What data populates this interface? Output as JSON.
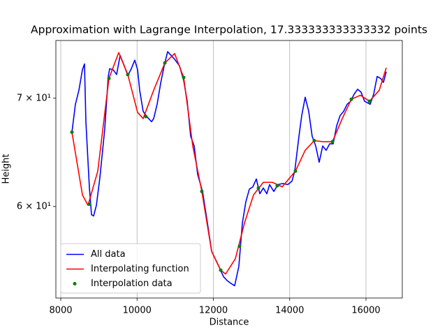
{
  "chart_data": {
    "type": "line",
    "title": "Approximation with Lagrange Interpolation, 17.333333333333332 points",
    "x_label": "Distance",
    "y_label": "Height",
    "xlim": [
      7872,
      16952
    ],
    "ylim": [
      52.67,
      76.0
    ],
    "xticks": [
      8000,
      10000,
      12000,
      14000,
      16000
    ],
    "yticks": [
      {
        "value": 60,
        "label": "6 × 10¹"
      },
      {
        "value": 70,
        "label": "7 × 10¹"
      }
    ],
    "y_scale": "log",
    "grid": "x",
    "legend": "lower left",
    "series": [
      {
        "name": "All data",
        "color": "#0000ff",
        "linestyle": "solid",
        "x": [
          8293,
          8384,
          8476,
          8568,
          8622,
          8659,
          8751,
          8806,
          8861,
          8934,
          9025,
          9153,
          9245,
          9281,
          9373,
          9464,
          9556,
          9666,
          9757,
          9849,
          9940,
          10014,
          10069,
          10160,
          10252,
          10380,
          10435,
          10526,
          10618,
          10710,
          10801,
          10893,
          10984,
          11112,
          11222,
          11314,
          11405,
          11497,
          11588,
          11716,
          11845,
          11954,
          12046,
          12174,
          12265,
          12357,
          12449,
          12558,
          12668,
          12760,
          12851,
          12943,
          13034,
          13126,
          13217,
          13309,
          13401,
          13474,
          13584,
          13693,
          13822,
          13950,
          14060,
          14133,
          14243,
          14316,
          14407,
          14499,
          14590,
          14682,
          14774,
          14865,
          14957,
          15048,
          15140,
          15231,
          15323,
          15414,
          15506,
          15597,
          15689,
          15780,
          15872,
          15963,
          16110,
          16201,
          16293,
          16385,
          16458,
          16531
        ],
        "values": [
          66.7,
          69.4,
          70.8,
          72.9,
          73.5,
          67.7,
          61.6,
          59.3,
          59.2,
          60.1,
          62.5,
          67.0,
          72.2,
          73.0,
          72.9,
          72.4,
          74.4,
          73.3,
          72.3,
          73.0,
          73.9,
          72.9,
          70.8,
          68.7,
          68.2,
          67.7,
          68.0,
          69.4,
          71.5,
          73.3,
          74.8,
          74.4,
          74.0,
          73.3,
          71.8,
          69.7,
          66.3,
          65.4,
          62.8,
          61.3,
          58.6,
          56.3,
          55.7,
          54.9,
          54.3,
          54.0,
          53.8,
          53.6,
          55.1,
          58.6,
          60.4,
          61.5,
          61.7,
          62.4,
          61.1,
          61.6,
          61.1,
          61.9,
          61.3,
          61.9,
          62.0,
          61.9,
          62.2,
          63.1,
          66.3,
          68.3,
          70.1,
          68.7,
          66.3,
          65.4,
          63.9,
          65.4,
          65.0,
          65.6,
          65.6,
          67.3,
          68.3,
          68.7,
          69.4,
          69.7,
          70.4,
          70.9,
          70.6,
          69.7,
          69.4,
          70.4,
          72.2,
          72.0,
          71.6,
          72.7
        ]
      },
      {
        "name": "Interpolating function",
        "color": "#ff0000",
        "linestyle": "solid",
        "x": [
          8293,
          8568,
          8714,
          8970,
          9263,
          9519,
          9757,
          10014,
          10160,
          10435,
          10728,
          10984,
          11222,
          11460,
          11698,
          11954,
          12192,
          12320,
          12577,
          12815,
          13053,
          13309,
          13547,
          13803,
          14151,
          14407,
          14645,
          14883,
          15121,
          15378,
          15616,
          15854,
          16092,
          16348,
          16531
        ],
        "values": [
          66.7,
          61.0,
          60.1,
          63.1,
          72.0,
          74.7,
          72.4,
          68.6,
          68.0,
          70.8,
          73.6,
          74.6,
          72.1,
          65.4,
          61.3,
          56.3,
          54.8,
          54.5,
          55.7,
          58.6,
          61.0,
          62.1,
          62.1,
          61.7,
          63.1,
          65.0,
          65.9,
          65.8,
          65.8,
          68.0,
          69.9,
          70.3,
          69.7,
          70.8,
          73.1
        ]
      },
      {
        "name": "Interpolation data",
        "color": "#008000",
        "linestyle": "none",
        "x": [
          8293,
          8751,
          9263,
          9757,
          10233,
          10728,
          11222,
          11698,
          12192,
          12687,
          13181,
          13675,
          14151,
          14645,
          15121,
          15616,
          16092
        ],
        "values": [
          66.7,
          60.2,
          72.0,
          72.4,
          68.2,
          73.6,
          72.1,
          61.3,
          54.8,
          56.7,
          61.6,
          61.8,
          63.1,
          65.9,
          65.8,
          69.9,
          69.7
        ]
      }
    ]
  }
}
